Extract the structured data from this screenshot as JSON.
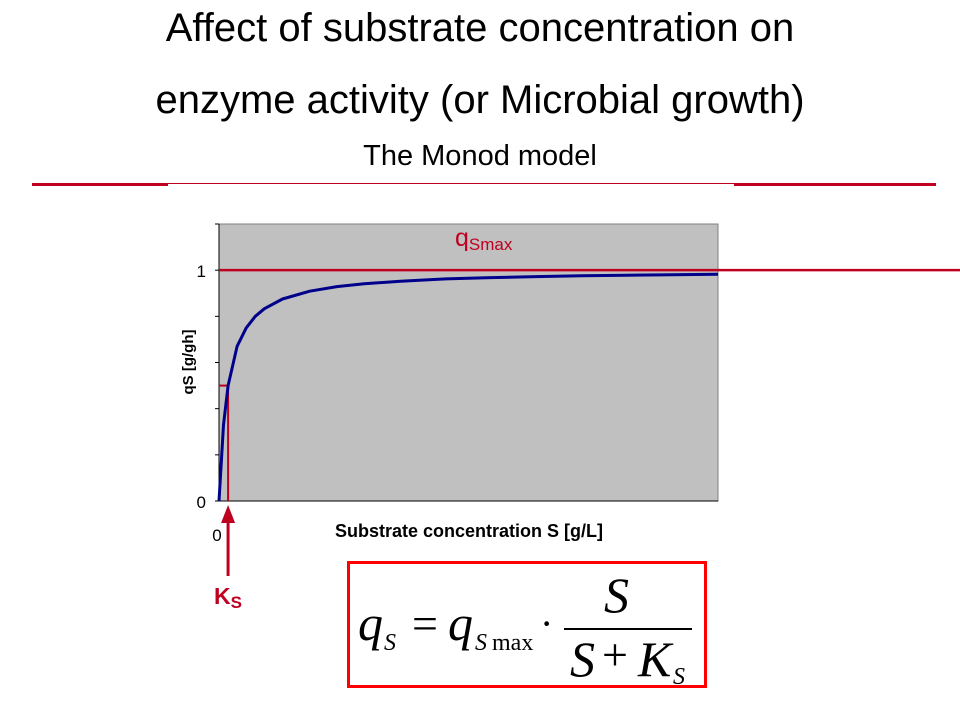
{
  "title": {
    "line1": "Affect of substrate concentration on",
    "line2": "enzyme activity (or Microbial growth)",
    "subtitle": "The Monod model"
  },
  "colors": {
    "accent_red": "#c0001f",
    "curve_blue": "#00008b",
    "plot_bg": "#c0c0c0",
    "formula_border": "#ff0000"
  },
  "chart_data": {
    "type": "line",
    "title": "",
    "xlabel": "Substrate concentration S [g/L]",
    "ylabel": "qS [g/gh]",
    "x_tick_labels": [
      "0"
    ],
    "y_tick_labels": [
      "0",
      "1"
    ],
    "xlim": [
      0,
      55
    ],
    "ylim": [
      0,
      1.2
    ],
    "grid": false,
    "legend": "none",
    "series": [
      {
        "x": [
          0,
          0.5,
          1,
          2,
          3,
          4,
          5,
          7,
          10,
          13,
          16,
          20,
          25,
          30,
          35,
          40,
          45,
          50,
          55
        ],
        "y": [
          0,
          0.33,
          0.5,
          0.67,
          0.75,
          0.8,
          0.833,
          0.875,
          0.909,
          0.929,
          0.941,
          0.952,
          0.962,
          0.968,
          0.972,
          0.976,
          0.978,
          0.98,
          0.982
        ]
      }
    ],
    "annotations": {
      "qsmax_main": "q",
      "qsmax_sub": "Smax",
      "qsmax_value": 1,
      "ks_main": "K",
      "ks_sub": "S",
      "ks_value": 1
    }
  },
  "formula": {
    "lhs_q": "q",
    "lhs_sub": "S",
    "equals": "=",
    "rhs_q": "q",
    "rhs_sub": "S",
    "rhs_max": "max",
    "dot": "·",
    "num": "S",
    "den_s": "S",
    "den_plus": "+",
    "den_k": "K",
    "den_k_sub": "S"
  }
}
